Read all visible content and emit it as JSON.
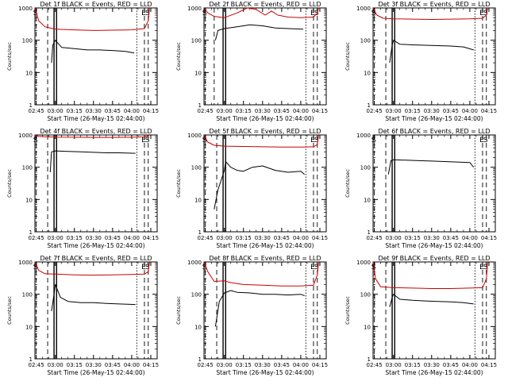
{
  "chart_data": [
    {
      "type": "line",
      "title": "Det 1f BLACK = Events, RED = LLD",
      "xlabel": "Start Time (26-May-15 02:44:00)",
      "ylabel": "Counts/sec",
      "x_ticks": [
        "02:45",
        "03:00",
        "03:15",
        "03:30",
        "03:45",
        "04:00",
        "04:15"
      ],
      "y_ticks": [
        "1",
        "10",
        "100",
        "1000"
      ],
      "y_scale": "log",
      "ylim": [
        1,
        1000
      ],
      "series": [
        {
          "color": "#000000",
          "x": [
            "02:57",
            "02:58",
            "03:00",
            "03:05",
            "03:15",
            "03:25",
            "03:35",
            "03:45",
            "03:55",
            "04:02"
          ],
          "y": [
            20,
            70,
            100,
            60,
            55,
            50,
            50,
            48,
            45,
            40
          ]
        },
        {
          "color": "#cc0000",
          "x": [
            "02:44",
            "02:47",
            "02:52",
            "03:00",
            "03:15",
            "03:30",
            "03:45",
            "04:00",
            "04:10",
            "04:13",
            "04:14"
          ],
          "y": [
            1000,
            400,
            260,
            220,
            210,
            200,
            205,
            210,
            230,
            400,
            1000
          ]
        }
      ],
      "markers": [
        {
          "label": "S",
          "x": "02:45",
          "style": "dashed"
        },
        {
          "label": "",
          "x": "02:54",
          "style": "dashed"
        },
        {
          "label": "",
          "x": "02:59",
          "style": "solid"
        },
        {
          "label": "",
          "x": "03:01",
          "style": "solid"
        },
        {
          "label": "",
          "x": "04:04",
          "style": "dotted"
        },
        {
          "label": "E",
          "x": "04:10",
          "style": "dashed"
        },
        {
          "label": "S",
          "x": "04:13",
          "style": "dashed"
        }
      ]
    },
    {
      "type": "line",
      "title": "Det 2f BLACK = Events, RED = LLD",
      "xlabel": "Start Time (26-May-15 02:44:00)",
      "ylabel": "Counts/sec",
      "x_ticks": [
        "02:45",
        "03:00",
        "03:15",
        "03:30",
        "03:45",
        "04:00",
        "04:15"
      ],
      "y_ticks": [
        "1",
        "10",
        "100",
        "1000"
      ],
      "y_scale": "log",
      "ylim": [
        1,
        1000
      ],
      "series": [
        {
          "color": "#000000",
          "x": [
            "02:53",
            "02:55",
            "03:00",
            "03:10",
            "03:20",
            "03:30",
            "03:40",
            "03:50",
            "04:02"
          ],
          "y": [
            100,
            200,
            230,
            260,
            300,
            280,
            240,
            230,
            220
          ]
        },
        {
          "color": "#cc0000",
          "x": [
            "02:44",
            "02:47",
            "02:52",
            "03:00",
            "03:10",
            "03:18",
            "03:25",
            "03:32",
            "03:37",
            "03:42",
            "03:50",
            "04:00",
            "04:10",
            "04:13",
            "04:14"
          ],
          "y": [
            1000,
            700,
            550,
            500,
            700,
            1000,
            900,
            600,
            800,
            600,
            520,
            500,
            520,
            700,
            1000
          ]
        }
      ],
      "markers": [
        {
          "label": "S",
          "x": "02:45",
          "style": "dashed"
        },
        {
          "label": "",
          "x": "02:52",
          "style": "dashed"
        },
        {
          "label": "",
          "x": "02:59",
          "style": "solid"
        },
        {
          "label": "",
          "x": "03:01",
          "style": "solid"
        },
        {
          "label": "",
          "x": "04:04",
          "style": "dotted"
        },
        {
          "label": "E",
          "x": "04:10",
          "style": "dashed"
        },
        {
          "label": "S",
          "x": "04:13",
          "style": "dashed"
        }
      ]
    },
    {
      "type": "line",
      "title": "Det 3f BLACK = Events, RED = LLD",
      "xlabel": "Start Time (26-May-15 02:44:00)",
      "ylabel": "Counts/sec",
      "x_ticks": [
        "02:45",
        "03:00",
        "03:15",
        "03:30",
        "03:45",
        "04:00",
        "04:15"
      ],
      "y_ticks": [
        "1",
        "10",
        "100",
        "1000"
      ],
      "y_scale": "log",
      "ylim": [
        1,
        1000
      ],
      "series": [
        {
          "color": "#000000",
          "x": [
            "02:57",
            "02:59",
            "03:00",
            "03:05",
            "03:15",
            "03:25",
            "03:35",
            "03:45",
            "03:55",
            "04:03"
          ],
          "y": [
            20,
            70,
            100,
            75,
            72,
            70,
            68,
            66,
            62,
            50
          ]
        },
        {
          "color": "#cc0000",
          "x": [
            "02:44",
            "02:47",
            "02:52",
            "03:00",
            "03:15",
            "03:30",
            "03:45",
            "04:00",
            "04:10",
            "04:13",
            "04:14"
          ],
          "y": [
            1000,
            600,
            480,
            460,
            450,
            440,
            450,
            460,
            480,
            600,
            1000
          ]
        }
      ],
      "markers": [
        {
          "label": "S",
          "x": "02:45",
          "style": "dashed"
        },
        {
          "label": "",
          "x": "02:54",
          "style": "dashed"
        },
        {
          "label": "",
          "x": "02:59",
          "style": "solid"
        },
        {
          "label": "",
          "x": "03:01",
          "style": "solid"
        },
        {
          "label": "",
          "x": "04:04",
          "style": "dotted"
        },
        {
          "label": "E",
          "x": "04:10",
          "style": "dashed"
        },
        {
          "label": "S",
          "x": "04:13",
          "style": "dashed"
        }
      ]
    },
    {
      "type": "line",
      "title": "Det 4f BLACK = Events, RED = LLD",
      "xlabel": "Start Time (26-May-15 02:44:00)",
      "ylabel": "Counts/sec",
      "x_ticks": [
        "02:45",
        "03:00",
        "03:15",
        "03:30",
        "03:45",
        "04:00",
        "04:15"
      ],
      "y_ticks": [
        "1",
        "10",
        "100",
        "1000"
      ],
      "y_scale": "log",
      "ylim": [
        1,
        1000
      ],
      "series": [
        {
          "color": "#000000",
          "x": [
            "02:56",
            "02:57",
            "03:00",
            "03:10",
            "03:20",
            "03:30",
            "03:40",
            "03:50",
            "04:03"
          ],
          "y": [
            70,
            300,
            320,
            310,
            300,
            290,
            280,
            280,
            270
          ]
        },
        {
          "color": "#cc0000",
          "x": [
            "02:44",
            "02:47",
            "02:52",
            "03:00",
            "03:15",
            "03:30",
            "03:45",
            "04:00",
            "04:10",
            "04:13",
            "04:14"
          ],
          "y": [
            1000,
            900,
            880,
            860,
            850,
            840,
            840,
            850,
            870,
            950,
            1000
          ]
        }
      ],
      "markers": [
        {
          "label": "S",
          "x": "02:45",
          "style": "dashed"
        },
        {
          "label": "",
          "x": "02:54",
          "style": "dashed"
        },
        {
          "label": "",
          "x": "02:59",
          "style": "solid"
        },
        {
          "label": "",
          "x": "03:01",
          "style": "solid"
        },
        {
          "label": "",
          "x": "04:04",
          "style": "dotted"
        },
        {
          "label": "E",
          "x": "04:10",
          "style": "dashed"
        },
        {
          "label": "S",
          "x": "04:13",
          "style": "dashed"
        }
      ]
    },
    {
      "type": "line",
      "title": "Det 5f BLACK = Events, RED = LLD",
      "xlabel": "Start Time (26-May-15 02:44:00)",
      "ylabel": "Counts/sec",
      "x_ticks": [
        "02:45",
        "03:00",
        "03:15",
        "03:30",
        "03:45",
        "04:00",
        "04:15"
      ],
      "y_ticks": [
        "1",
        "10",
        "100",
        "1000"
      ],
      "y_scale": "log",
      "ylim": [
        1,
        1000
      ],
      "series": [
        {
          "color": "#000000",
          "x": [
            "02:52",
            "02:55",
            "03:00",
            "03:01",
            "03:05",
            "03:10",
            "03:15",
            "03:22",
            "03:30",
            "03:40",
            "03:50",
            "04:00",
            "04:03"
          ],
          "y": [
            5,
            20,
            80,
            150,
            100,
            80,
            75,
            100,
            110,
            80,
            70,
            75,
            60
          ]
        },
        {
          "color": "#cc0000",
          "x": [
            "02:44",
            "02:47",
            "02:52",
            "03:00",
            "03:15",
            "03:30",
            "03:45",
            "04:00",
            "04:10",
            "04:13",
            "04:14"
          ],
          "y": [
            1000,
            600,
            480,
            450,
            440,
            430,
            420,
            420,
            430,
            500,
            1000
          ]
        }
      ],
      "markers": [
        {
          "label": "S",
          "x": "02:45",
          "style": "dashed"
        },
        {
          "label": "",
          "x": "02:54",
          "style": "dashed"
        },
        {
          "label": "",
          "x": "02:59",
          "style": "solid"
        },
        {
          "label": "",
          "x": "03:01",
          "style": "solid"
        },
        {
          "label": "",
          "x": "04:04",
          "style": "dotted"
        },
        {
          "label": "E",
          "x": "04:10",
          "style": "dashed"
        },
        {
          "label": "S",
          "x": "04:13",
          "style": "dashed"
        }
      ]
    },
    {
      "type": "line",
      "title": "Det 6f BLACK = Events, RED = LLD",
      "xlabel": "Start Time (26-May-15 02:44:00)",
      "ylabel": "Counts/sec",
      "x_ticks": [
        "02:45",
        "03:00",
        "03:15",
        "03:30",
        "03:45",
        "04:00",
        "04:15"
      ],
      "y_ticks": [
        "1",
        "10",
        "100",
        "1000"
      ],
      "y_scale": "log",
      "ylim": [
        1,
        1000
      ],
      "series": [
        {
          "color": "#000000",
          "x": [
            "02:56",
            "02:58",
            "03:00",
            "03:10",
            "03:20",
            "03:30",
            "03:40",
            "03:50",
            "04:00",
            "04:03"
          ],
          "y": [
            60,
            160,
            170,
            165,
            160,
            155,
            150,
            145,
            140,
            100
          ]
        }
      ],
      "markers": [
        {
          "label": "S",
          "x": "02:45",
          "style": "dashed"
        },
        {
          "label": "",
          "x": "02:54",
          "style": "dashed"
        },
        {
          "label": "",
          "x": "02:59",
          "style": "solid"
        },
        {
          "label": "",
          "x": "03:01",
          "style": "solid"
        },
        {
          "label": "",
          "x": "04:04",
          "style": "dotted"
        },
        {
          "label": "E",
          "x": "04:10",
          "style": "dashed"
        },
        {
          "label": "S",
          "x": "04:13",
          "style": "dashed"
        }
      ]
    },
    {
      "type": "line",
      "title": "Det 7f BLACK = Events, RED = LLD",
      "xlabel": "Start Time (26-May-15 02:44:00)",
      "ylabel": "Counts/sec",
      "x_ticks": [
        "02:45",
        "03:00",
        "03:15",
        "03:30",
        "03:45",
        "04:00",
        "04:15"
      ],
      "y_ticks": [
        "1",
        "10",
        "100",
        "1000"
      ],
      "y_scale": "log",
      "ylim": [
        1,
        1000
      ],
      "series": [
        {
          "color": "#000000",
          "x": [
            "02:57",
            "02:59",
            "03:00",
            "03:04",
            "03:10",
            "03:20",
            "03:30",
            "03:40",
            "03:50",
            "04:03"
          ],
          "y": [
            30,
            100,
            200,
            80,
            60,
            55,
            55,
            52,
            50,
            48
          ]
        },
        {
          "color": "#cc0000",
          "x": [
            "02:44",
            "02:47",
            "02:52",
            "03:00",
            "03:15",
            "03:30",
            "03:45",
            "04:00",
            "04:10",
            "04:13",
            "04:14"
          ],
          "y": [
            1000,
            550,
            430,
            420,
            400,
            390,
            400,
            410,
            420,
            500,
            1000
          ]
        }
      ],
      "markers": [
        {
          "label": "S",
          "x": "02:45",
          "style": "dashed"
        },
        {
          "label": "",
          "x": "02:54",
          "style": "dashed"
        },
        {
          "label": "",
          "x": "02:59",
          "style": "solid"
        },
        {
          "label": "",
          "x": "03:01",
          "style": "solid"
        },
        {
          "label": "",
          "x": "04:04",
          "style": "dotted"
        },
        {
          "label": "E",
          "x": "04:10",
          "style": "dashed"
        },
        {
          "label": "S",
          "x": "04:13",
          "style": "dashed"
        }
      ]
    },
    {
      "type": "line",
      "title": "Det 8f BLACK = Events, RED = LLD",
      "xlabel": "Start Time (26-May-15 02:44:00)",
      "ylabel": "Counts/sec",
      "x_ticks": [
        "02:45",
        "03:00",
        "03:15",
        "03:30",
        "03:45",
        "04:00",
        "04:15"
      ],
      "y_ticks": [
        "1",
        "10",
        "100",
        "1000"
      ],
      "y_scale": "log",
      "ylim": [
        1,
        1000
      ],
      "series": [
        {
          "color": "#000000",
          "x": [
            "02:53",
            "02:56",
            "03:00",
            "03:05",
            "03:10",
            "03:20",
            "03:30",
            "03:40",
            "03:50",
            "04:00",
            "04:03"
          ],
          "y": [
            10,
            60,
            110,
            130,
            115,
            110,
            100,
            100,
            95,
            100,
            90
          ]
        },
        {
          "color": "#cc0000",
          "x": [
            "02:44",
            "02:47",
            "02:52",
            "03:00",
            "03:05",
            "03:15",
            "03:30",
            "03:45",
            "04:00",
            "04:10",
            "04:13",
            "04:14"
          ],
          "y": [
            1000,
            500,
            250,
            260,
            230,
            200,
            190,
            180,
            180,
            190,
            400,
            1000
          ]
        }
      ],
      "markers": [
        {
          "label": "S",
          "x": "02:45",
          "style": "dashed"
        },
        {
          "label": "",
          "x": "02:54",
          "style": "dashed"
        },
        {
          "label": "",
          "x": "02:59",
          "style": "solid"
        },
        {
          "label": "",
          "x": "03:01",
          "style": "solid"
        },
        {
          "label": "",
          "x": "04:04",
          "style": "dotted"
        },
        {
          "label": "E",
          "x": "04:10",
          "style": "dashed"
        },
        {
          "label": "S",
          "x": "04:13",
          "style": "dashed"
        }
      ]
    },
    {
      "type": "line",
      "title": "Det 9f BLACK = Events, RED = LLD",
      "xlabel": "Start Time (26-May-15 02:44:00)",
      "ylabel": "Counts/sec",
      "x_ticks": [
        "02:45",
        "03:00",
        "03:15",
        "03:30",
        "03:45",
        "04:00",
        "04:15"
      ],
      "y_ticks": [
        "1",
        "10",
        "100",
        "1000"
      ],
      "y_scale": "log",
      "ylim": [
        1,
        1000
      ],
      "series": [
        {
          "color": "#000000",
          "x": [
            "02:57",
            "02:59",
            "03:00",
            "03:05",
            "03:15",
            "03:25",
            "03:35",
            "03:45",
            "03:55",
            "04:03"
          ],
          "y": [
            40,
            80,
            100,
            70,
            65,
            62,
            60,
            58,
            55,
            50
          ]
        },
        {
          "color": "#cc0000",
          "x": [
            "02:44",
            "02:46",
            "02:50",
            "03:00",
            "03:15",
            "03:30",
            "03:45",
            "04:00",
            "04:10",
            "04:13",
            "04:14"
          ],
          "y": [
            1000,
            300,
            170,
            160,
            155,
            150,
            150,
            155,
            160,
            300,
            1000
          ]
        }
      ],
      "markers": [
        {
          "label": "S",
          "x": "02:45",
          "style": "dashed"
        },
        {
          "label": "",
          "x": "02:54",
          "style": "dashed"
        },
        {
          "label": "",
          "x": "02:59",
          "style": "solid"
        },
        {
          "label": "",
          "x": "03:01",
          "style": "solid"
        },
        {
          "label": "",
          "x": "04:04",
          "style": "dotted"
        },
        {
          "label": "E",
          "x": "04:10",
          "style": "dashed"
        },
        {
          "label": "S",
          "x": "04:13",
          "style": "dashed"
        }
      ]
    }
  ]
}
